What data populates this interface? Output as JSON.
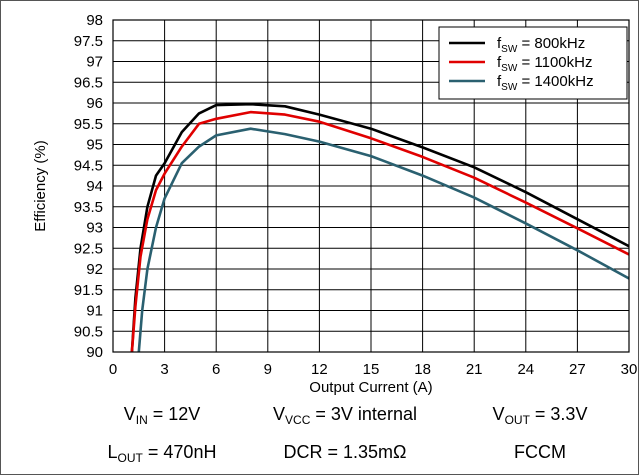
{
  "chart_data": {
    "type": "line",
    "xlabel": "Output Current (A)",
    "ylabel": "Efficiency (%)",
    "xlim": [
      0,
      30
    ],
    "ylim": [
      90,
      98
    ],
    "xticks": [
      "0",
      "3",
      "6",
      "9",
      "12",
      "15",
      "18",
      "21",
      "24",
      "27",
      "30"
    ],
    "yticks": [
      "90",
      "90.5",
      "91",
      "91.5",
      "92",
      "92.5",
      "93",
      "93.5",
      "94",
      "94.5",
      "95",
      "95.5",
      "96",
      "96.5",
      "97",
      "97.5",
      "98"
    ],
    "grid": true,
    "legend_position": "top-right",
    "series": [
      {
        "name_prefix": "f",
        "name_sub": "SW",
        "name_suffix": " = 800kHz",
        "color": "#000000",
        "x": [
          1.1,
          1.3,
          1.6,
          2.0,
          2.5,
          3.0,
          4.0,
          5.0,
          6.0,
          8.0,
          10.0,
          12.0,
          15.0,
          18.0,
          21.0,
          24.0,
          27.0,
          30.0
        ],
        "y": [
          90.0,
          91.3,
          92.5,
          93.5,
          94.25,
          94.55,
          95.3,
          95.75,
          95.95,
          95.97,
          95.92,
          95.72,
          95.38,
          94.93,
          94.45,
          93.85,
          93.2,
          92.55
        ]
      },
      {
        "name_prefix": "f",
        "name_sub": "SW",
        "name_suffix": " = 1100kHz",
        "color": "#e00000",
        "x": [
          1.1,
          1.3,
          1.6,
          2.0,
          2.5,
          3.0,
          4.0,
          5.0,
          6.0,
          8.0,
          10.0,
          12.0,
          15.0,
          18.0,
          21.0,
          24.0,
          27.0,
          30.0
        ],
        "y": [
          90.0,
          91.1,
          92.3,
          93.2,
          93.9,
          94.3,
          94.95,
          95.5,
          95.62,
          95.78,
          95.72,
          95.55,
          95.15,
          94.7,
          94.2,
          93.6,
          92.98,
          92.35
        ]
      },
      {
        "name_prefix": "f",
        "name_sub": "SW",
        "name_suffix": " = 1400kHz",
        "color": "#2a6070",
        "x": [
          1.5,
          1.7,
          2.0,
          2.5,
          3.0,
          4.0,
          5.0,
          6.0,
          8.0,
          10.0,
          12.0,
          15.0,
          18.0,
          21.0,
          24.0,
          27.0,
          30.0
        ],
        "y": [
          90.0,
          91.0,
          92.0,
          93.0,
          93.7,
          94.55,
          94.95,
          95.22,
          95.38,
          95.25,
          95.07,
          94.72,
          94.25,
          93.72,
          93.1,
          92.45,
          91.77
        ]
      }
    ]
  },
  "conditions": {
    "row1": [
      {
        "main": "V",
        "sub": "IN",
        "rest": " = 12V"
      },
      {
        "main": "V",
        "sub": "VCC",
        "rest": " = 3V internal"
      },
      {
        "main": "V",
        "sub": "OUT",
        "rest": " = 3.3V"
      }
    ],
    "row2": [
      {
        "main": "L",
        "sub": "OUT",
        "rest": " = 470nH"
      },
      {
        "main": "DCR = 1.35mΩ",
        "sub": "",
        "rest": ""
      },
      {
        "main": "FCCM",
        "sub": "",
        "rest": ""
      }
    ]
  }
}
